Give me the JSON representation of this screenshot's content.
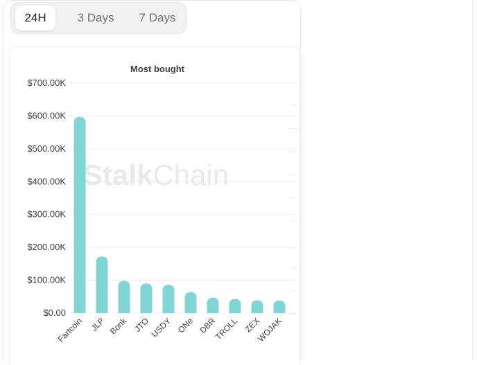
{
  "tabs": [
    {
      "label": "24H",
      "active": true
    },
    {
      "label": "3 Days",
      "active": false
    },
    {
      "label": "7 Days",
      "active": false
    }
  ],
  "watermark": {
    "bold": "Stalk",
    "light": "Chain"
  },
  "colors": {
    "bar": "#7fd6d4",
    "grid": "#e9ecef",
    "text": "#3a3f45"
  },
  "chart_data": {
    "type": "bar",
    "title": "Most bought",
    "xlabel": "",
    "ylabel": "",
    "categories": [
      "Fartcoin",
      "JLP",
      "Bonk",
      "JTO",
      "USDY",
      "ONe",
      "DBR",
      "TROLL",
      "ZEX",
      "WOJAK"
    ],
    "values": [
      597000,
      172000,
      98000,
      90000,
      86000,
      64000,
      47000,
      43000,
      39000,
      38000
    ],
    "ylim": [
      0,
      700000
    ],
    "yticks": [
      0,
      100000,
      200000,
      300000,
      400000,
      500000,
      600000,
      700000
    ],
    "ytick_labels": [
      "$0.00",
      "$100.00K",
      "$200.00K",
      "$300.00K",
      "$400.00K",
      "$500.00K",
      "$600.00K",
      "$700.00K"
    ],
    "grid": true,
    "legend": "none"
  }
}
